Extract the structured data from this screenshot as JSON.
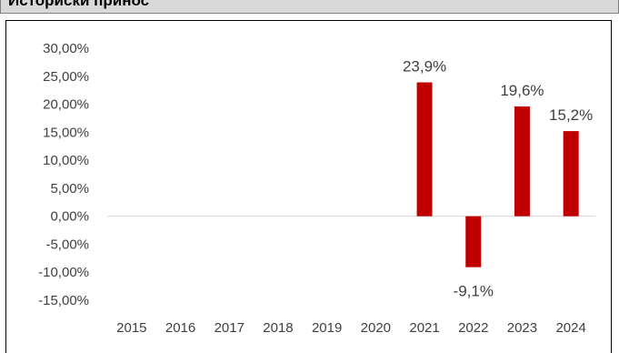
{
  "header": {
    "title": "Историски принос"
  },
  "chart_data": {
    "type": "bar",
    "title": "",
    "xlabel": "",
    "ylabel": "",
    "categories": [
      "2015",
      "2016",
      "2017",
      "2018",
      "2019",
      "2020",
      "2021",
      "2022",
      "2023",
      "2024"
    ],
    "values": [
      null,
      null,
      null,
      null,
      null,
      null,
      23.9,
      -9.1,
      19.6,
      15.2
    ],
    "data_labels": [
      "",
      "",
      "",
      "",
      "",
      "",
      "23,9%",
      "-9,1%",
      "19,6%",
      "15,2%"
    ],
    "y_ticks": [
      "30,00%",
      "25,00%",
      "20,00%",
      "15,00%",
      "10,00%",
      "5,00%",
      "0,00%",
      "-5,00%",
      "-10,00%",
      "-15,00%"
    ],
    "y_tick_values": [
      30,
      25,
      20,
      15,
      10,
      5,
      0,
      -5,
      -10,
      -15
    ],
    "ylim": [
      -15,
      30
    ],
    "grid": false,
    "legend": "none",
    "bar_color": "#c00000",
    "axis_color": "#d9d9d9"
  }
}
